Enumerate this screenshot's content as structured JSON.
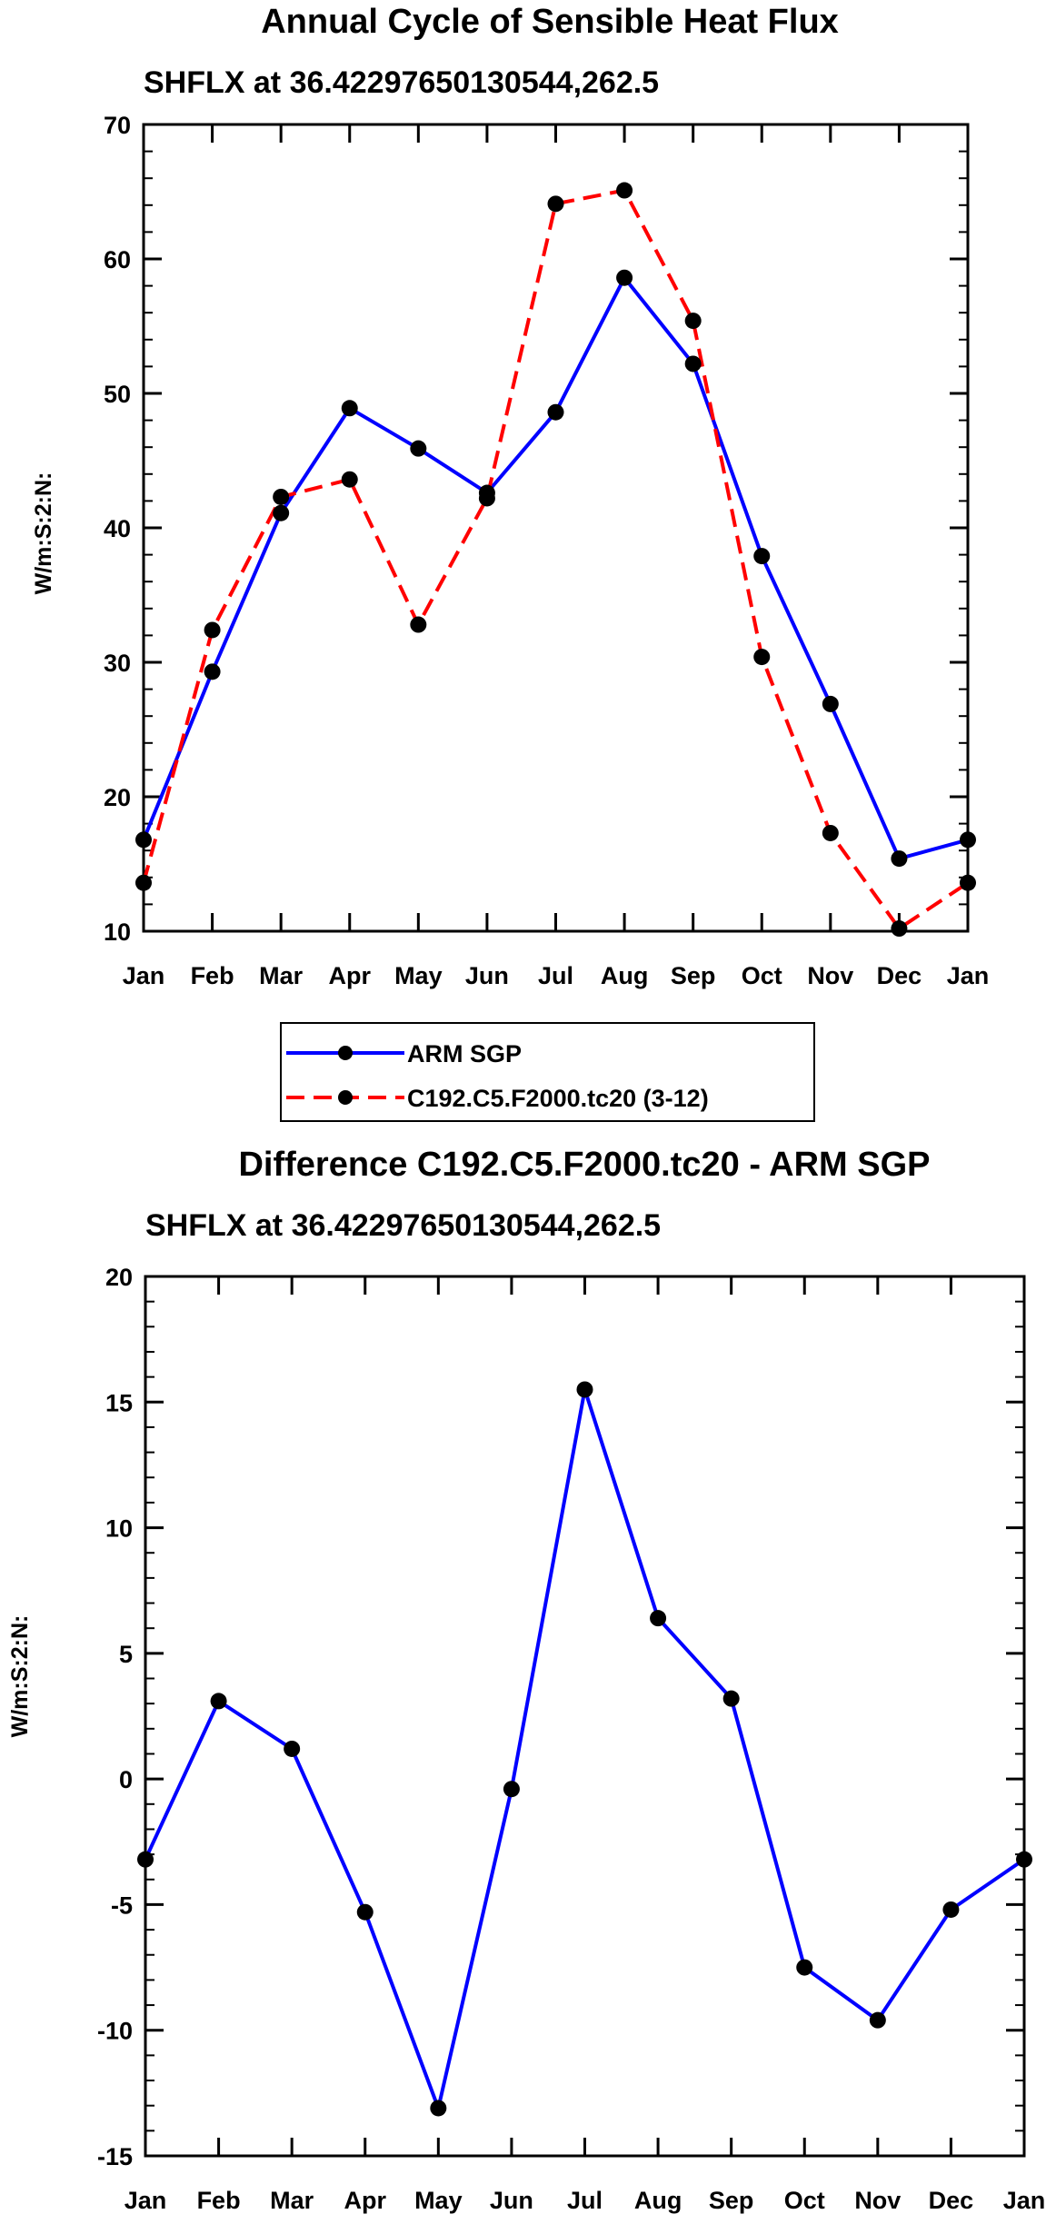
{
  "chart_data": [
    {
      "type": "line",
      "title": "Annual Cycle of Sensible Heat Flux",
      "subtitle": "SHFLX at 36.42297650130544,262.5",
      "xlabel": "",
      "ylabel": "W/m:S:2:N:",
      "categories": [
        "Jan",
        "Feb",
        "Mar",
        "Apr",
        "May",
        "Jun",
        "Jul",
        "Aug",
        "Sep",
        "Oct",
        "Nov",
        "Dec",
        "Jan"
      ],
      "ylim": [
        10,
        70
      ],
      "yticks": [
        10,
        20,
        30,
        40,
        50,
        60,
        70
      ],
      "grid": false,
      "legend": "bottom",
      "series": [
        {
          "name": "ARM SGP",
          "color": "#0000ff",
          "dash": "solid",
          "values": [
            16.8,
            29.3,
            41.1,
            48.9,
            45.9,
            42.6,
            48.6,
            58.6,
            52.2,
            37.9,
            26.9,
            15.4,
            16.8
          ]
        },
        {
          "name": "C192.C5.F2000.tc20 (3-12)",
          "color": "#ff0000",
          "dash": "dashed",
          "values": [
            13.6,
            32.4,
            42.3,
            43.6,
            32.8,
            42.2,
            64.1,
            65.1,
            55.4,
            30.4,
            17.3,
            10.2,
            13.6
          ]
        }
      ]
    },
    {
      "type": "line",
      "title": "Difference C192.C5.F2000.tc20 - ARM SGP",
      "subtitle": "SHFLX at 36.42297650130544,262.5",
      "xlabel": "",
      "ylabel": "W/m:S:2:N:",
      "categories": [
        "Jan",
        "Feb",
        "Mar",
        "Apr",
        "May",
        "Jun",
        "Jul",
        "Aug",
        "Sep",
        "Oct",
        "Nov",
        "Dec",
        "Jan"
      ],
      "ylim": [
        -15,
        20
      ],
      "yticks": [
        -15,
        -10,
        -5,
        0,
        5,
        10,
        15,
        20
      ],
      "grid": false,
      "series": [
        {
          "name": "Difference",
          "color": "#0000ff",
          "dash": "solid",
          "values": [
            -3.2,
            3.1,
            1.2,
            -5.3,
            -13.1,
            -0.4,
            15.5,
            6.4,
            3.2,
            -7.5,
            -9.6,
            -5.2,
            -3.2
          ]
        }
      ]
    }
  ]
}
